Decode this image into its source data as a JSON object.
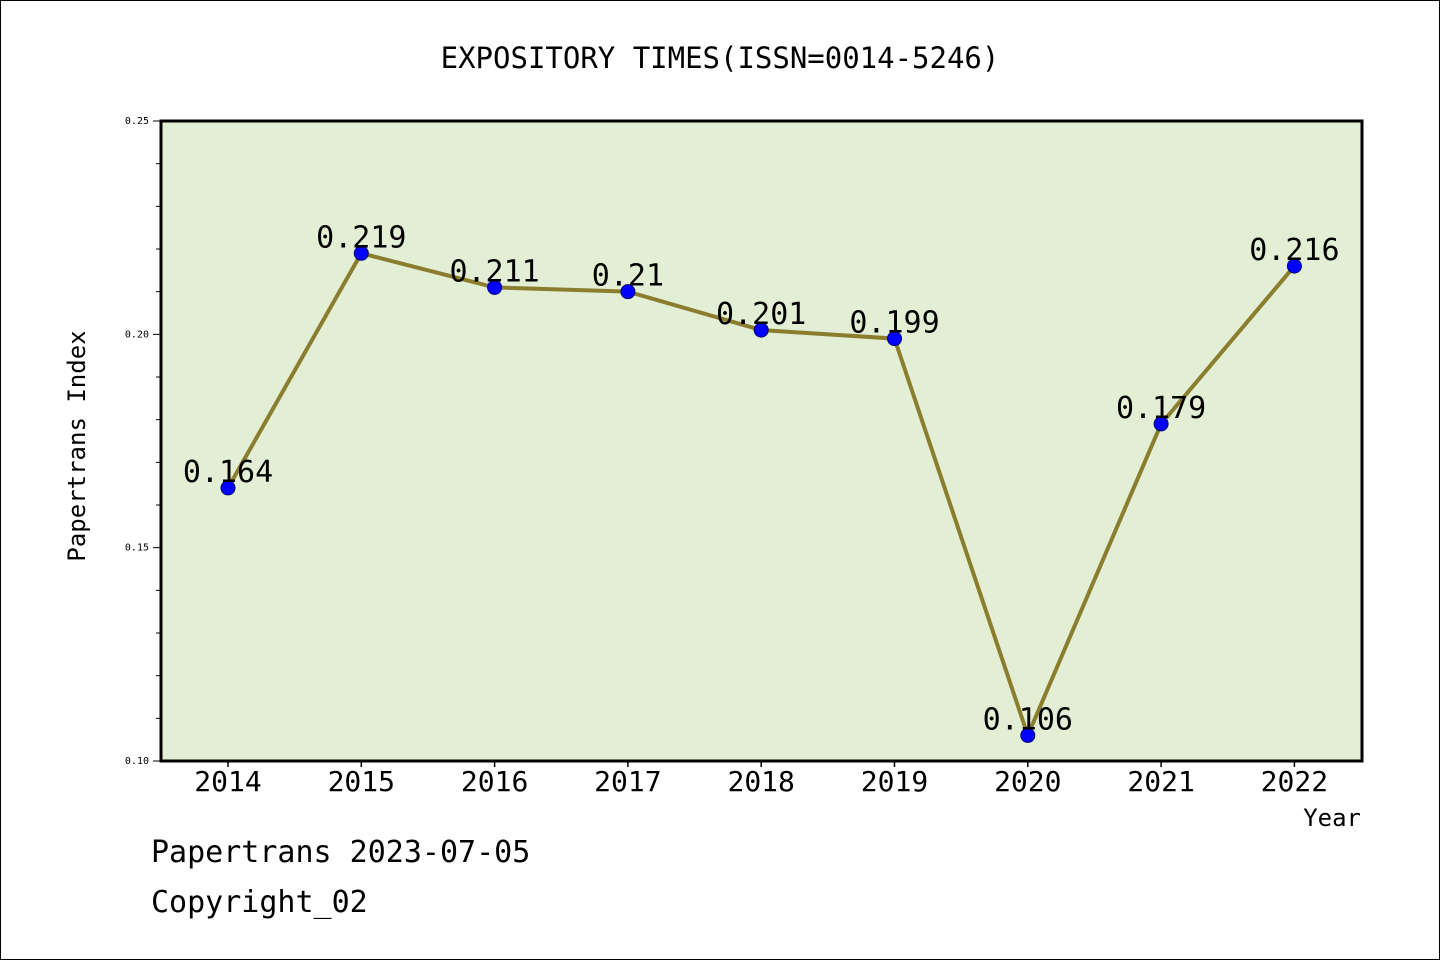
{
  "chart_data": {
    "type": "line",
    "title": "EXPOSITORY TIMES(ISSN=0014-5246)",
    "xlabel": "Year",
    "ylabel": "Papertrans Index",
    "categories": [
      "2014",
      "2015",
      "2016",
      "2017",
      "2018",
      "2019",
      "2020",
      "2021",
      "2022"
    ],
    "series": [
      {
        "values": [
          0.164,
          0.219,
          0.211,
          0.21,
          0.201,
          0.199,
          0.106,
          0.179,
          0.216
        ],
        "data_labels": [
          "0.164",
          "0.219",
          "0.211",
          "0.21",
          "0.201",
          "0.199",
          "0.106",
          "0.179",
          "0.216"
        ]
      }
    ],
    "ylim": [
      0.1,
      0.25
    ],
    "yticks": [
      "0.10",
      "0.15",
      "0.20",
      "0.25"
    ],
    "grid": false,
    "colors": {
      "plot_background": "#e2efd5",
      "line": "#8b7d2e",
      "marker": "#0000ff"
    }
  },
  "footer": {
    "date_line": "Papertrans 2023-07-05",
    "copyright": "Copyright_02"
  }
}
